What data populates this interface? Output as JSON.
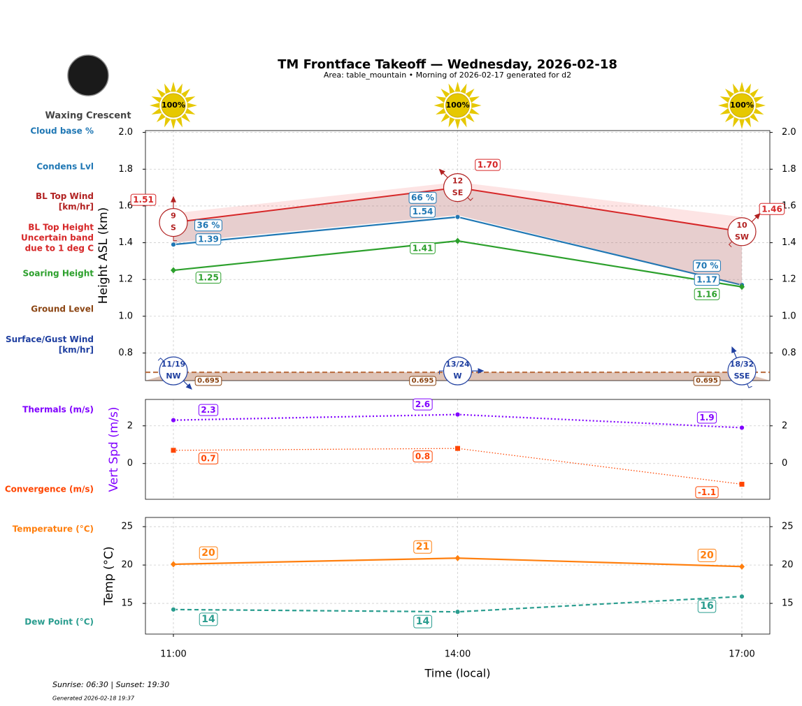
{
  "title": "TM Frontface Takeoff — Wednesday, 2026-02-18",
  "subtitle": "Area: table_mountain • Morning of 2026-02-17 generated for d2",
  "moon_phase": "Waxing Crescent",
  "sun_times": "Sunrise: 06:30 | Sunset: 19:30",
  "generated": "Generated 2026-02-18 19:37",
  "chart_data": [
    {
      "type": "line",
      "ylabel": "Height ASL (km)",
      "ylim": [
        0.65,
        2.01
      ],
      "yticks": [
        0.8,
        {
          "value": 1,
          "label": "1.0"
        },
        1.2,
        1.4,
        1.6,
        1.8,
        {
          "value": 2,
          "label": "2.0"
        }
      ],
      "grid": true,
      "sunshine": {
        "values": [
          100,
          100,
          100
        ],
        "value_labels": [
          "100%",
          "100%",
          "100%"
        ]
      },
      "series": [
        {
          "name": "Cloud base %",
          "color": "#1f77b4",
          "style": "labels",
          "values": [
            36,
            66,
            70
          ],
          "value_labels": [
            "36 %",
            "66 %",
            "70 %"
          ]
        },
        {
          "name": "Condens Lvl",
          "color": "#1f77b4",
          "style": "line",
          "marker": "circle",
          "values": [
            1.39,
            1.54,
            1.17
          ]
        },
        {
          "name": "BL Top Wind [km/hr]",
          "color": "#b22222",
          "style": "wind",
          "values": [
            9,
            12,
            10
          ],
          "directions": [
            "S",
            "SE",
            "SW"
          ]
        },
        {
          "name": "BL Top Height Uncertain band due to 1 deg C",
          "color": "#d62728",
          "style": "band",
          "values": [
            1.51,
            1.7,
            1.46
          ],
          "value_labels": [
            "1.51",
            "1.70",
            "1.46"
          ],
          "upper": [
            1.56,
            1.73,
            1.54
          ],
          "lower": [
            1.4,
            1.55,
            1.17
          ]
        },
        {
          "name": "Soaring Height",
          "color": "#2ca02c",
          "style": "line",
          "marker": "diamond",
          "values": [
            1.25,
            1.41,
            1.16
          ]
        },
        {
          "name": "Ground Level",
          "color": "#8b4513",
          "style": "ground",
          "values": [
            0.695,
            0.695,
            0.695
          ]
        },
        {
          "name": "Surface/Gust Wind [km/hr]",
          "color": "#1f3fa0",
          "style": "wind",
          "values": [
            11,
            13,
            18
          ],
          "gusts": [
            19,
            24,
            32
          ],
          "value_labels": [
            "11/19",
            "13/24",
            "18/32"
          ],
          "directions": [
            "NW",
            "W",
            "SSE"
          ]
        }
      ]
    },
    {
      "type": "line",
      "ylabel": "Vert Spd (m/s)",
      "ylabel_color": "#8000ff",
      "ylim": [
        -1.9,
        3.4
      ],
      "yticks": [
        0,
        2
      ],
      "grid": true,
      "series": [
        {
          "name": "Thermals (m/s)",
          "color": "#8000ff",
          "style": "line",
          "dash": "dotted",
          "marker": "circle",
          "values": [
            2.3,
            2.6,
            1.9
          ]
        },
        {
          "name": "Convergence (m/s)",
          "color": "#ff4500",
          "style": "line",
          "dash": "dotted-thin",
          "marker": "square",
          "values": [
            0.7,
            0.8,
            -1.1
          ]
        }
      ]
    },
    {
      "type": "line",
      "ylabel": "Temp (°C)",
      "ylim": [
        11,
        26.2
      ],
      "yticks": [
        15,
        20,
        25
      ],
      "grid": true,
      "xlabel": "Time (local)",
      "categories": [
        "11:00",
        "14:00",
        "17:00"
      ],
      "series": [
        {
          "name": "Temperature (°C)",
          "color": "#ff7f0e",
          "style": "line",
          "marker": "diamond",
          "values": [
            20.1,
            20.9,
            19.8
          ],
          "value_labels": [
            "20",
            "21",
            "20"
          ]
        },
        {
          "name": "Dew Point (°C)",
          "color": "#2a9d8f",
          "style": "line",
          "dash": "dashed",
          "marker": "circle",
          "values": [
            14.2,
            13.9,
            15.9
          ],
          "value_labels": [
            "14",
            "14",
            "16"
          ]
        }
      ]
    }
  ]
}
